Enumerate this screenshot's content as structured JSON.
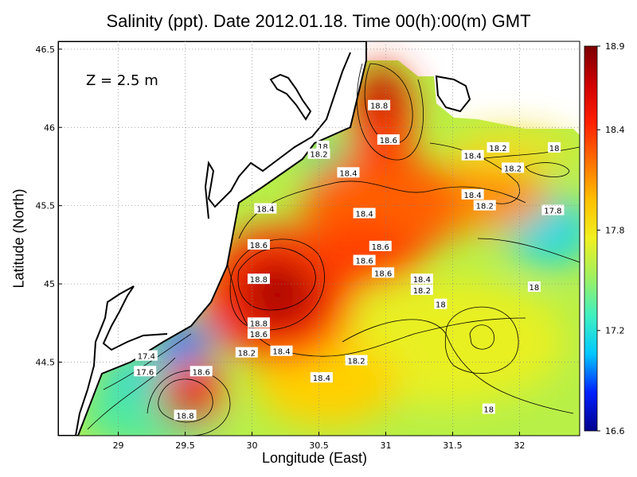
{
  "chart_data": {
    "type": "heatmap",
    "title": "Salinity (ppt). Date 2012.01.18. Time 00(h):00(m) GMT",
    "xlabel": "Longitude (East)",
    "ylabel": "Latitude (North)",
    "annotation": "Z = 2.5 m",
    "xlim": [
      28.55,
      32.45
    ],
    "ylim": [
      44.03,
      46.55
    ],
    "x_ticks": [
      "29",
      "29.5",
      "30",
      "30.5",
      "31",
      "31.5",
      "32"
    ],
    "x_tick_values": [
      29,
      29.5,
      30,
      30.5,
      31,
      31.5,
      32
    ],
    "y_ticks": [
      "44.5",
      "45",
      "45.5",
      "46",
      "46.5"
    ],
    "y_tick_values": [
      44.5,
      45,
      45.5,
      46,
      46.5
    ],
    "grid": true,
    "colorbar": {
      "min": 16.6,
      "max": 18.9,
      "labels": [
        "18.9",
        "18.4",
        "17.8",
        "17.2",
        "16.6"
      ],
      "label_values": [
        18.9,
        18.4,
        17.8,
        17.2,
        16.6
      ],
      "colors": [
        "#00008c",
        "#0020ff",
        "#00c8ff",
        "#40f0c0",
        "#a0f060",
        "#f0f020",
        "#ffc000",
        "#ff7000",
        "#ff2000",
        "#d00000",
        "#7a0000"
      ]
    },
    "contour_labels": [
      {
        "text": "18.8",
        "x": 30.95,
        "y": 46.14
      },
      {
        "text": "18.6",
        "x": 31.02,
        "y": 45.92
      },
      {
        "text": "18",
        "x": 30.53,
        "y": 45.88
      },
      {
        "text": "18.2",
        "x": 30.5,
        "y": 45.83
      },
      {
        "text": "18.4",
        "x": 30.72,
        "y": 45.71
      },
      {
        "text": "18.2",
        "x": 31.84,
        "y": 45.87
      },
      {
        "text": "18",
        "x": 32.26,
        "y": 45.87
      },
      {
        "text": "18.4",
        "x": 31.65,
        "y": 45.82
      },
      {
        "text": "18.2",
        "x": 31.95,
        "y": 45.74
      },
      {
        "text": "18.4",
        "x": 31.65,
        "y": 45.57
      },
      {
        "text": "18.2",
        "x": 31.74,
        "y": 45.5
      },
      {
        "text": "17.8",
        "x": 32.25,
        "y": 45.47
      },
      {
        "text": "18.4",
        "x": 30.1,
        "y": 45.48
      },
      {
        "text": "18.4",
        "x": 30.84,
        "y": 45.45
      },
      {
        "text": "18.6",
        "x": 30.05,
        "y": 45.25
      },
      {
        "text": "18.6",
        "x": 30.96,
        "y": 45.24
      },
      {
        "text": "18.6",
        "x": 30.84,
        "y": 45.15
      },
      {
        "text": "18.6",
        "x": 30.98,
        "y": 45.07
      },
      {
        "text": "18.8",
        "x": 30.05,
        "y": 45.03
      },
      {
        "text": "18.4",
        "x": 31.27,
        "y": 45.03
      },
      {
        "text": "18.2",
        "x": 31.27,
        "y": 44.96
      },
      {
        "text": "18",
        "x": 32.11,
        "y": 44.98
      },
      {
        "text": "18",
        "x": 31.41,
        "y": 44.87
      },
      {
        "text": "18.8",
        "x": 30.05,
        "y": 44.75
      },
      {
        "text": "18.6",
        "x": 30.05,
        "y": 44.68
      },
      {
        "text": "18.4",
        "x": 30.22,
        "y": 44.57
      },
      {
        "text": "18.2",
        "x": 29.96,
        "y": 44.56
      },
      {
        "text": "17.4",
        "x": 29.21,
        "y": 44.54
      },
      {
        "text": "18.2",
        "x": 30.78,
        "y": 44.51
      },
      {
        "text": "17.6",
        "x": 29.2,
        "y": 44.44
      },
      {
        "text": "18.6",
        "x": 29.62,
        "y": 44.44
      },
      {
        "text": "18.4",
        "x": 30.52,
        "y": 44.4
      },
      {
        "text": "18",
        "x": 31.77,
        "y": 44.2
      },
      {
        "text": "18.8",
        "x": 29.5,
        "y": 44.16
      }
    ]
  }
}
